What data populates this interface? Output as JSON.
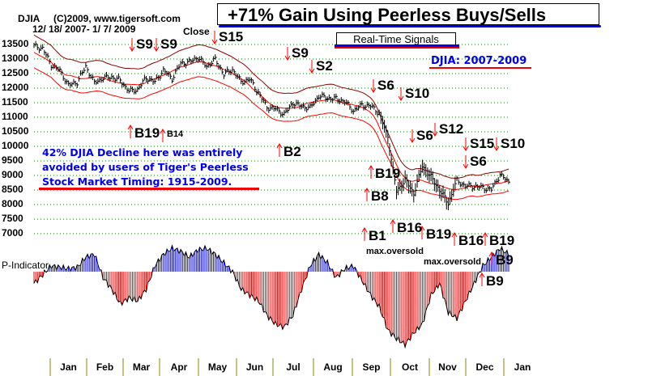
{
  "header": {
    "symbol": "DJIA",
    "copyright": "(C)2009, www.tigersoft.com",
    "close_label": "Close",
    "date_range": "12/ 18/ 2007- 1/ 7/ 2009"
  },
  "title": "+71% Gain Using Peerless Buys/Sells",
  "realtime_label": "Real-Time Signals",
  "djia_label": "DJIA: 2007-2009",
  "note_lines": [
    "42% DJIA Decline here was entirely",
    "avoided by users of Tiger's Peerless",
    "Stock Market Timing: 1915-2009."
  ],
  "indicator_label": "P-Indicator",
  "oversold_labels": [
    "max.oversold",
    "max.oversold"
  ],
  "signals": [
    {
      "label": "S9",
      "type": "sell"
    },
    {
      "label": "S9",
      "type": "sell"
    },
    {
      "label": "S15",
      "type": "sell"
    },
    {
      "label": "S9",
      "type": "sell"
    },
    {
      "label": "S2",
      "type": "sell"
    },
    {
      "label": "S6",
      "type": "sell"
    },
    {
      "label": "S10",
      "type": "sell"
    },
    {
      "label": "S6",
      "type": "sell"
    },
    {
      "label": "S12",
      "type": "sell"
    },
    {
      "label": "S15",
      "type": "sell"
    },
    {
      "label": "S10",
      "type": "sell"
    },
    {
      "label": "S6",
      "type": "sell"
    },
    {
      "label": "B19",
      "type": "buy"
    },
    {
      "label": "B14",
      "type": "buy"
    },
    {
      "label": "B2",
      "type": "buy"
    },
    {
      "label": "B19",
      "type": "buy"
    },
    {
      "label": "B8",
      "type": "buy"
    },
    {
      "label": "B16",
      "type": "buy"
    },
    {
      "label": "B1",
      "type": "buy"
    },
    {
      "label": "B19",
      "type": "buy"
    },
    {
      "label": "B16",
      "type": "buy"
    },
    {
      "label": "B19",
      "type": "buy"
    },
    {
      "label": "B9",
      "type": "buy"
    },
    {
      "label": "B9",
      "type": "buy"
    }
  ],
  "colors": {
    "bars": "#000000",
    "upper_band": "#8b0000",
    "bands": "#ff0000",
    "grid": "#008000",
    "pos": "#0000ff",
    "neg": "#ff0000",
    "arrow": "#ff0000"
  },
  "chart_data": {
    "type": "line",
    "title": "DJIA 12/18/2007 - 1/7/2009",
    "ylabel": "DJIA",
    "ylim": [
      7000,
      13500
    ],
    "yticks": [
      13500,
      13000,
      12500,
      12000,
      11500,
      11000,
      10500,
      10000,
      9500,
      9000,
      8500,
      8000,
      7500,
      7000
    ],
    "months": [
      "Jan",
      "Feb",
      "Mar",
      "Apr",
      "May",
      "Jun",
      "Jul",
      "Aug",
      "Sep",
      "Oct",
      "Nov",
      "Dec",
      "Jan"
    ],
    "weekly_close": [
      13450,
      13365,
      12800,
      12606,
      12099,
      12207,
      12743,
      12182,
      12348,
      12381,
      12266,
      11894,
      11951,
      12361,
      12216,
      12610,
      12325,
      12850,
      12891,
      13058,
      12745,
      12986,
      12480,
      12638,
      12210,
      12307,
      11842,
      11347,
      11288,
      11100,
      11496,
      11370,
      11326,
      11734,
      11659,
      11628,
      11543,
      11220,
      11421,
      11388,
      11143,
      10325,
      8451,
      8852,
      8378,
      9325,
      8943,
      8497,
      8046,
      8829,
      8635,
      8629,
      8579,
      8515,
      9034,
      8769
    ],
    "p_indicator": [
      -40,
      -10,
      20,
      15,
      10,
      15,
      50,
      60,
      -20,
      -60,
      -110,
      -90,
      -100,
      -60,
      20,
      60,
      80,
      70,
      50,
      75,
      80,
      60,
      30,
      0,
      -60,
      -80,
      -100,
      -150,
      -180,
      -190,
      -150,
      -60,
      20,
      60,
      30,
      -20,
      10,
      20,
      -30,
      -80,
      -120,
      -200,
      -230,
      -250,
      -210,
      -180,
      -80,
      -40,
      -140,
      -160,
      -100,
      -40,
      20,
      50,
      80,
      60
    ]
  }
}
